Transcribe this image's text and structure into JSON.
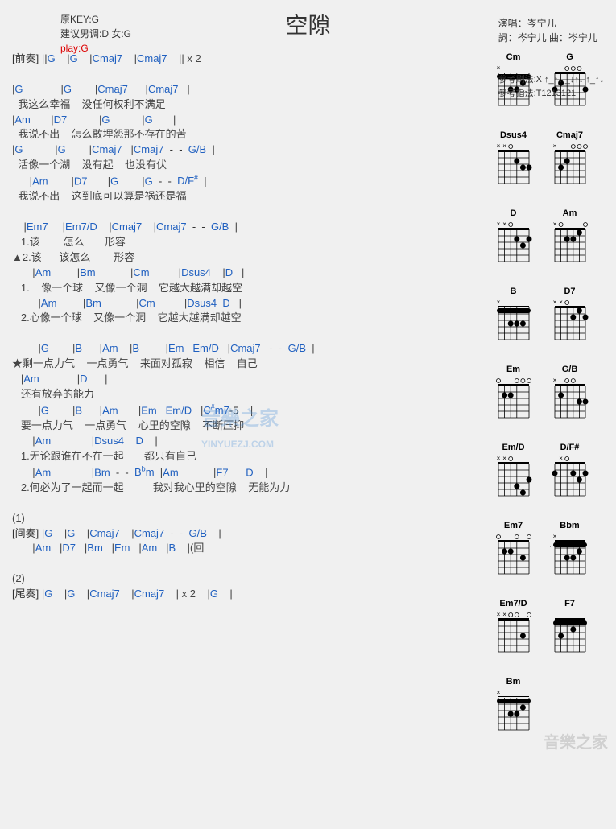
{
  "title": "空隙",
  "meta": {
    "orig_key": "原KEY:G",
    "suggest": "建议男调:D 女:G",
    "play": "play:G",
    "singer": "演唱：岑宁儿",
    "lyrics_credit": "詞：岑宁儿  曲：岑宁儿",
    "strum": "参考刷法:X ↑_↑↓ _↓↑↓ ↑_↑↓",
    "finger": "参考指法:T1213121"
  },
  "lines": [
    {
      "t": "c",
      "text": "[前奏] ||G    |G    |Cmaj7    |Cmaj7    || x 2"
    },
    {
      "t": "sp"
    },
    {
      "t": "c",
      "text": "|G             |G        |Cmaj7      |Cmaj7   |"
    },
    {
      "t": "l",
      "text": "  我这么幸福    没任何权利不满足"
    },
    {
      "t": "c",
      "text": "|Am       |D7           |G           |G       |"
    },
    {
      "t": "l",
      "text": "  我说不出    怎么敢埋怨那不存在的苦"
    },
    {
      "t": "c",
      "text": "|G           |G        |Cmaj7   |Cmaj7  -  -  G/B  |"
    },
    {
      "t": "l",
      "text": "  活像一个湖    没有起    也没有伏"
    },
    {
      "t": "c",
      "text": "      |Am        |D7       |G        |G  -  -  D/F♯  |"
    },
    {
      "t": "l",
      "text": "  我说不出    这到底可以算是祸还是福"
    },
    {
      "t": "sp"
    },
    {
      "t": "c",
      "text": "    |Em7     |Em7/D    |Cmaj7    |Cmaj7  -  -  G/B  |"
    },
    {
      "t": "l",
      "text": "   1.该        怎么       形容"
    },
    {
      "t": "l",
      "text": "▲2.该      该怎么        形容"
    },
    {
      "t": "c",
      "text": "       |Am         |Bm            |Cm          |Dsus4    |D   |"
    },
    {
      "t": "l",
      "text": "   1.    像一个球    又像一个洞    它越大越满却越空"
    },
    {
      "t": "c",
      "text": "         |Am         |Bm            |Cm          |Dsus4  D   |"
    },
    {
      "t": "l",
      "text": "   2.心像一个球    又像一个洞    它越大越满却越空"
    },
    {
      "t": "sp"
    },
    {
      "t": "c",
      "text": "         |G        |B      |Am    |B         |Em   Em/D   |Cmaj7   -  -  G/B  |"
    },
    {
      "t": "l",
      "text": "★剩一点力气    一点勇气    来面对孤寂    相信    自己"
    },
    {
      "t": "c",
      "text": "   |Am             |D      |"
    },
    {
      "t": "l",
      "text": "   还有放弃的能力"
    },
    {
      "t": "c",
      "text": "         |G        |B      |Am       |Em   Em/D   |C♯m7-5    |"
    },
    {
      "t": "l",
      "text": "   要一点力气    一点勇气    心里的空隙    不断压抑"
    },
    {
      "t": "c",
      "text": "       |Am              |Dsus4    D    |"
    },
    {
      "t": "l",
      "text": "   1.无论跟谁在不在一起       都只有自己"
    },
    {
      "t": "c",
      "text": "       |Am              |Bm  -  -  B♭m  |Am            |F7      D    |"
    },
    {
      "t": "l",
      "text": "   2.何必为了一起而一起          我对我心里的空隙    无能为力"
    },
    {
      "t": "sp"
    },
    {
      "t": "l",
      "text": "(1)"
    },
    {
      "t": "c",
      "text": "[间奏] |G    |G    |Cmaj7    |Cmaj7  -  -  G/B    |"
    },
    {
      "t": "c",
      "text": "       |Am   |D7   |Bm   |Em   |Am   |B    |(回"
    },
    {
      "t": "sp"
    },
    {
      "t": "l",
      "text": "(2)"
    },
    {
      "t": "c",
      "text": "[尾奏] |G    |G    |Cmaj7    |Cmaj7    | x 2    |G    |"
    }
  ],
  "chords": [
    {
      "name": "Cm",
      "frets": [
        null,
        3,
        5,
        5,
        4,
        3
      ],
      "barre": 3
    },
    {
      "name": "G",
      "frets": [
        3,
        2,
        0,
        0,
        0,
        3
      ]
    },
    {
      "name": "Dsus4",
      "frets": [
        null,
        null,
        0,
        2,
        3,
        3
      ]
    },
    {
      "name": "Cmaj7",
      "frets": [
        null,
        3,
        2,
        0,
        0,
        0
      ]
    },
    {
      "name": "D",
      "frets": [
        null,
        null,
        0,
        2,
        3,
        2
      ]
    },
    {
      "name": "Am",
      "frets": [
        null,
        0,
        2,
        2,
        1,
        0
      ]
    },
    {
      "name": "B",
      "frets": [
        null,
        2,
        4,
        4,
        4,
        2
      ],
      "barre": 2
    },
    {
      "name": "D7",
      "frets": [
        null,
        null,
        0,
        2,
        1,
        2
      ]
    },
    {
      "name": "Em",
      "frets": [
        0,
        2,
        2,
        0,
        0,
        0
      ]
    },
    {
      "name": "G/B",
      "frets": [
        null,
        2,
        0,
        0,
        3,
        3
      ]
    },
    {
      "name": "Em/D",
      "frets": [
        null,
        null,
        0,
        4,
        5,
        3
      ]
    },
    {
      "name": "D/F#",
      "frets": [
        2,
        null,
        0,
        2,
        3,
        2
      ]
    },
    {
      "name": "Em7",
      "frets": [
        0,
        2,
        2,
        0,
        3,
        0
      ]
    },
    {
      "name": "Bbm",
      "frets": [
        null,
        1,
        3,
        3,
        2,
        1
      ],
      "barre": 1
    },
    {
      "name": "Em7/D",
      "frets": [
        null,
        null,
        0,
        0,
        3,
        0
      ]
    },
    {
      "name": "F7",
      "frets": [
        1,
        3,
        1,
        2,
        1,
        1
      ],
      "barre": 1
    },
    {
      "name": "Bm",
      "frets": [
        null,
        2,
        4,
        4,
        3,
        2
      ],
      "barre": 2
    }
  ],
  "watermark": "音樂之家",
  "watermark_sub": "YINYUEZJ.COM",
  "colors": {
    "chord": "#2060c0",
    "lyric": "#444444",
    "play": "#dd0000",
    "bg": "#f0f0f0"
  }
}
